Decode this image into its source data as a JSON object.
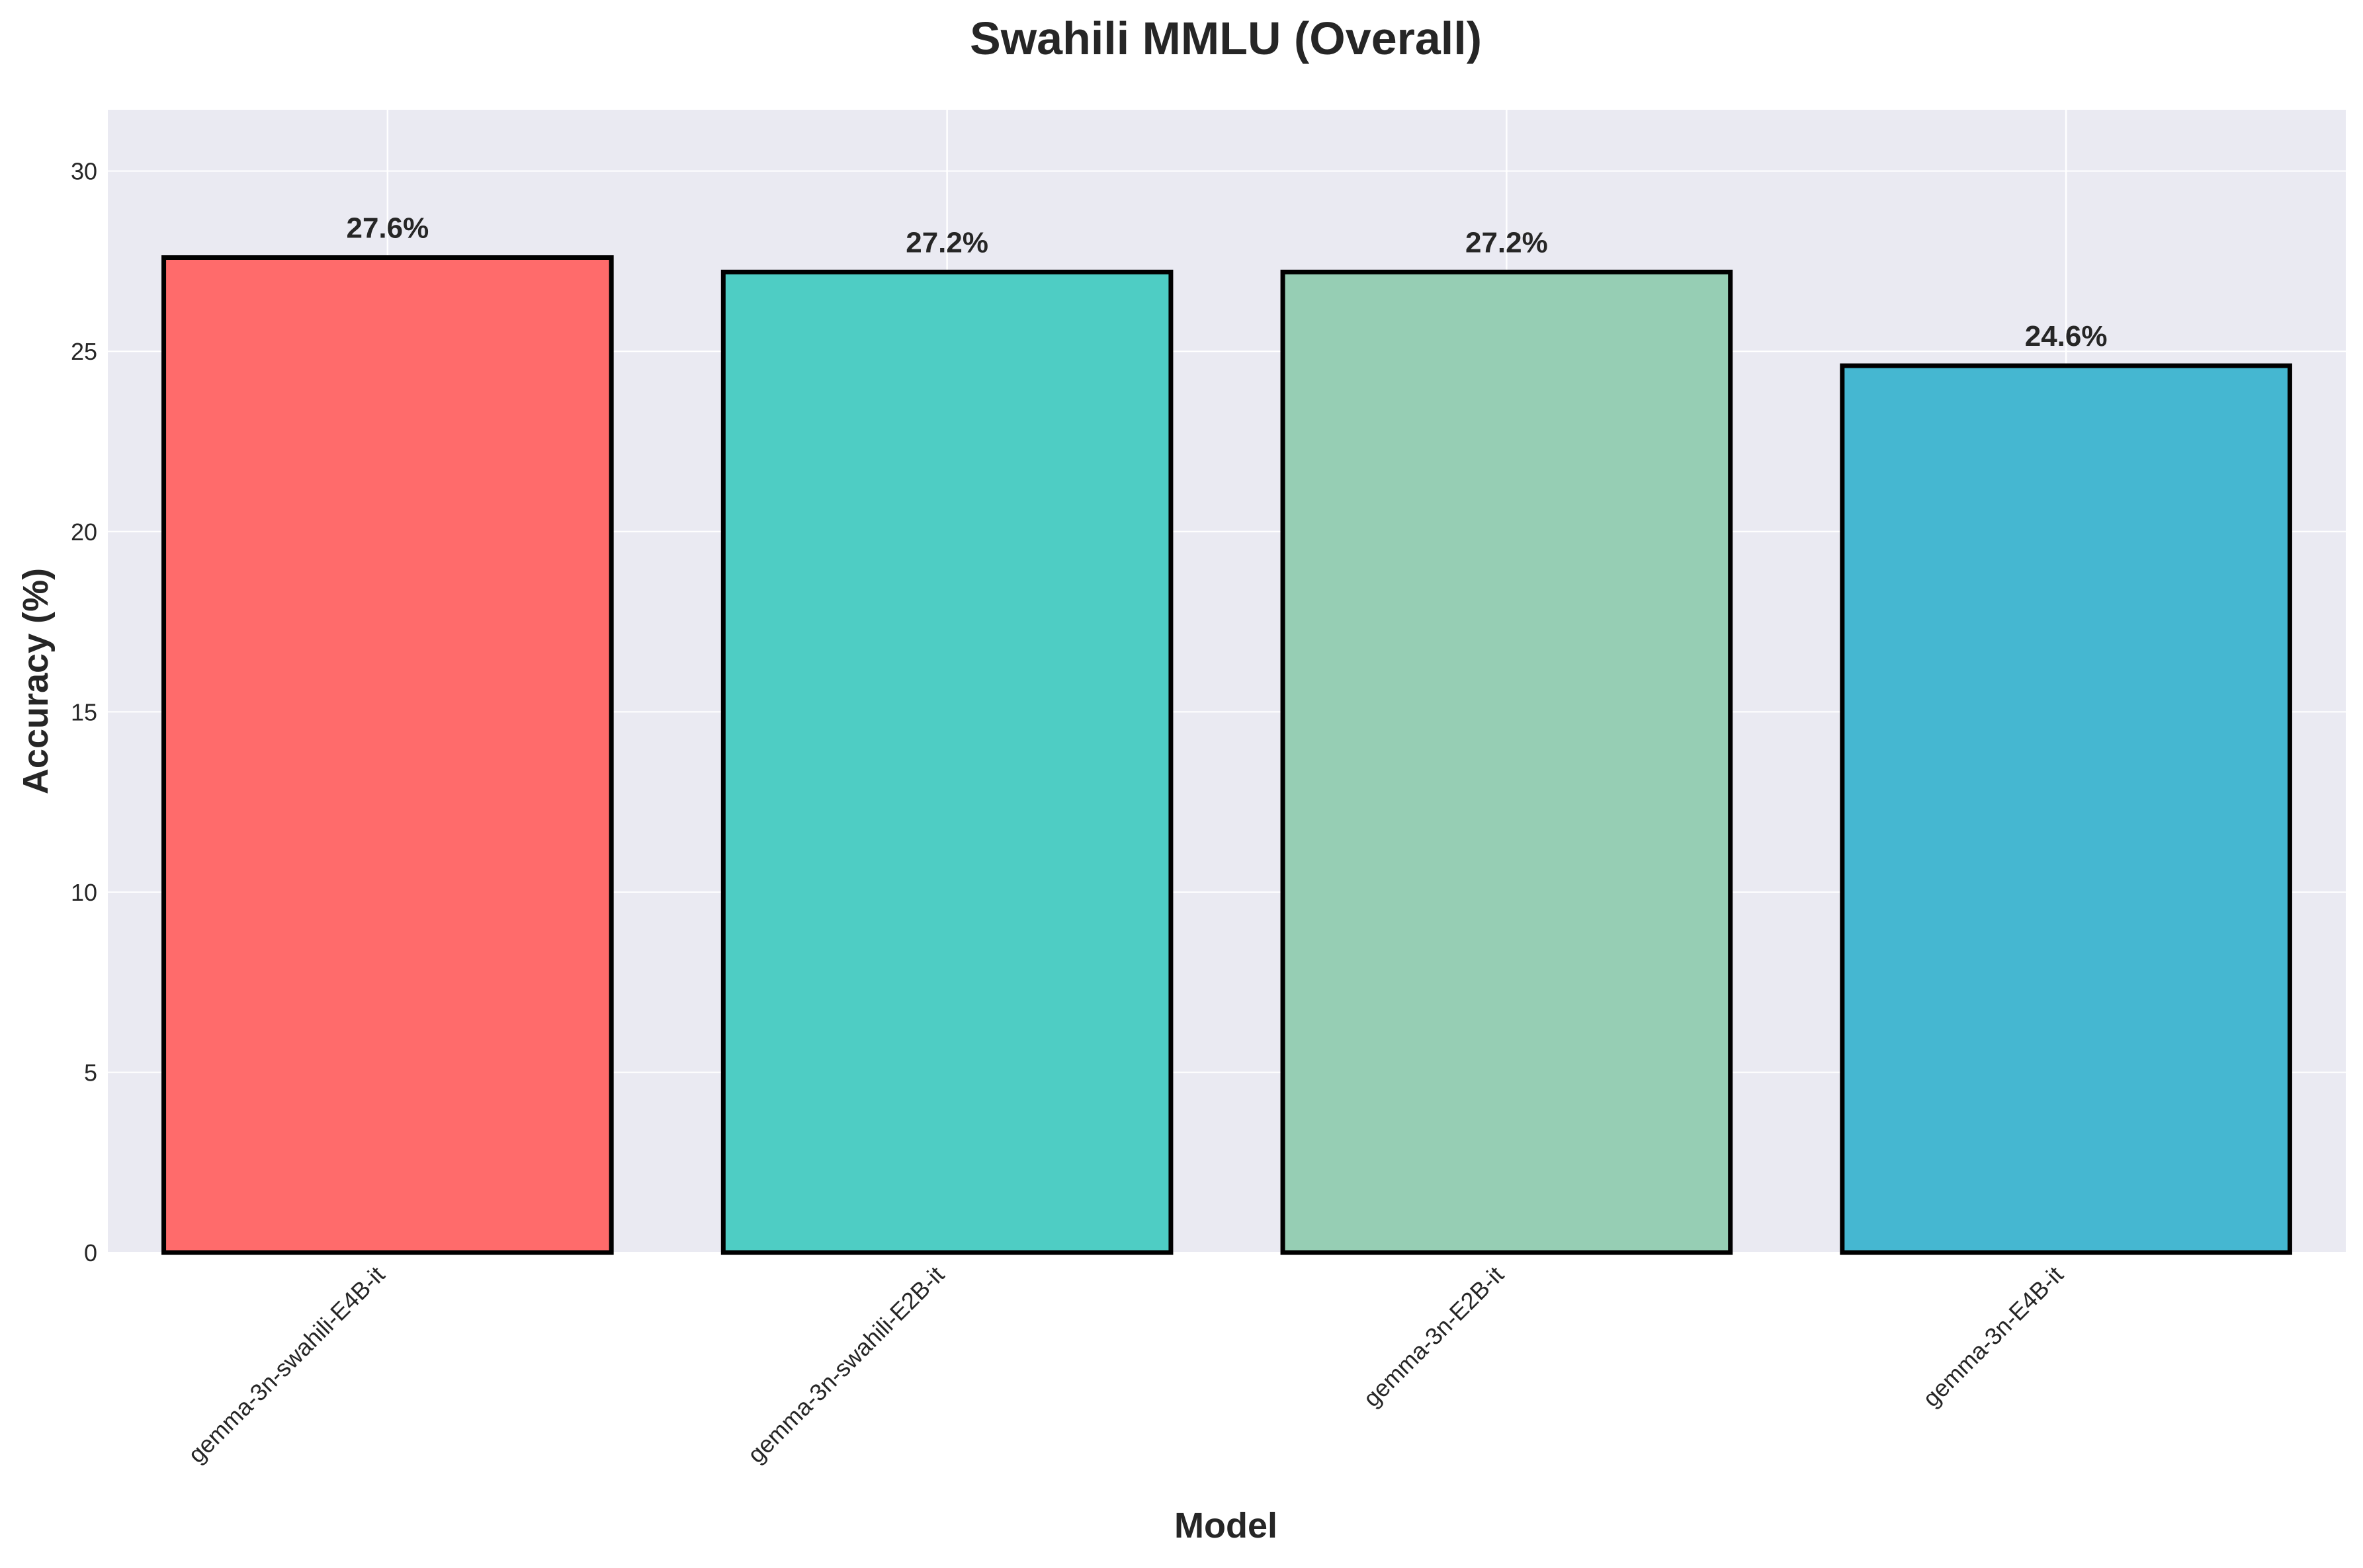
{
  "chart_data": {
    "type": "bar",
    "title": "Swahili MMLU (Overall)",
    "xlabel": "Model",
    "ylabel": "Accuracy (%)",
    "categories": [
      "gemma-3n-swahili-E4B-it",
      "gemma-3n-swahili-E2B-it",
      "gemma-3n-E2B-it",
      "gemma-3n-E4B-it"
    ],
    "values": [
      27.6,
      27.2,
      27.2,
      24.6
    ],
    "value_labels": [
      "27.6%",
      "27.2%",
      "27.2%",
      "24.6%"
    ],
    "colors": [
      "#FF6B6B",
      "#4ECDC4",
      "#96CEB4",
      "#45B7D1"
    ],
    "edge_color": "#000000",
    "ylim": [
      0,
      31.7
    ],
    "yticks": [
      0,
      5,
      10,
      15,
      20,
      25,
      30
    ],
    "grid": true,
    "plot_background": "#EAEAF2",
    "grid_color": "#FFFFFF"
  }
}
